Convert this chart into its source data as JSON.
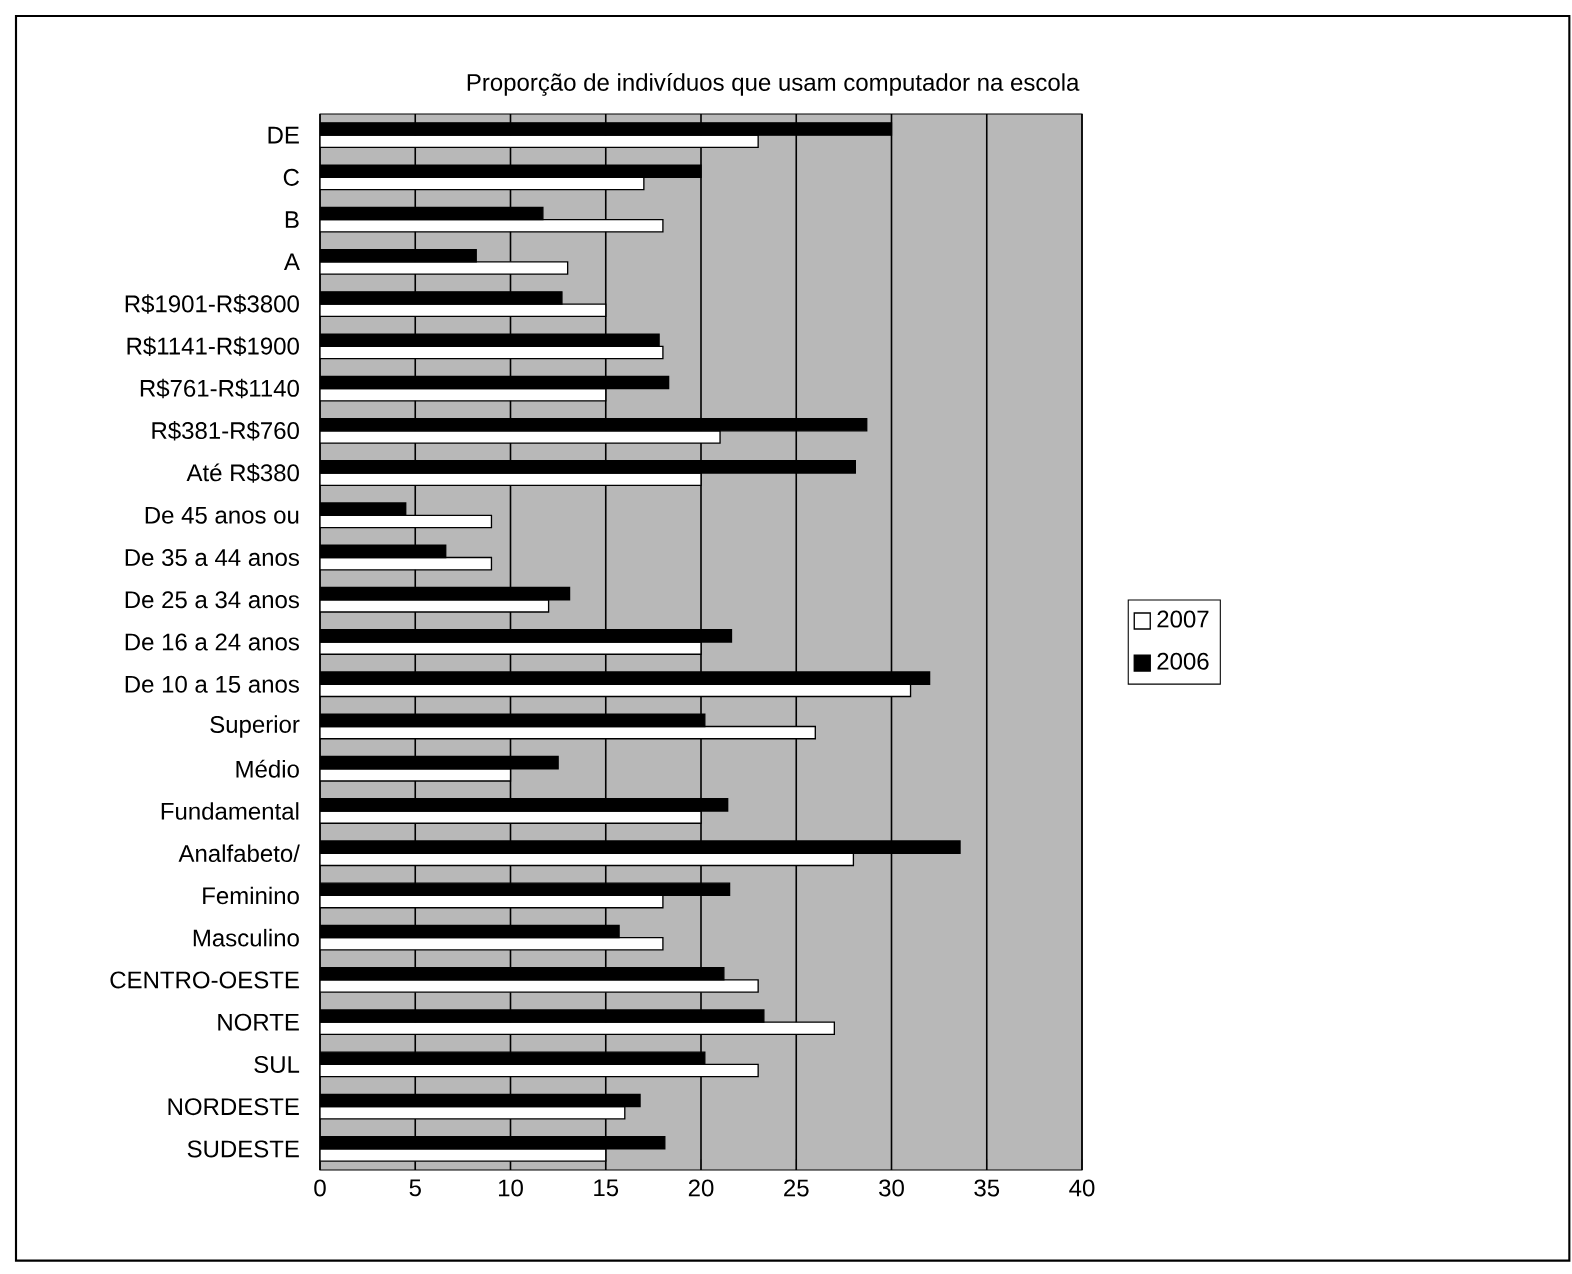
{
  "chart_data": {
    "type": "bar",
    "orientation": "horizontal",
    "title": "Proporção de indivíduos que usam computador na escola",
    "categories": [
      "DE",
      "C",
      "B",
      "A",
      "R$1901-R$3800",
      "R$1141-R$1900",
      "R$761-R$1140",
      "R$381-R$760",
      "Até R$380",
      "De 45 anos ou",
      "De 35 a 44 anos",
      "De 25 a 34 anos",
      "De 16 a 24 anos",
      "De 10 a 15 anos",
      "Superior",
      "Médio",
      "Fundamental",
      "Analfabeto/",
      "Feminino",
      "Masculino",
      "CENTRO-OESTE",
      "NORTE",
      "SUL",
      "NORDESTE",
      "SUDESTE"
    ],
    "series": [
      {
        "name": "2007",
        "color": "#ffffff",
        "values": [
          23,
          17,
          18,
          13,
          15,
          18,
          15,
          21,
          20,
          9,
          9,
          12,
          20,
          31,
          26,
          10,
          20,
          28,
          18,
          18,
          23,
          27,
          23,
          16,
          15
        ]
      },
      {
        "name": "2006",
        "color": "#000000",
        "values": [
          30,
          20,
          11.7,
          8.2,
          12.7,
          17.8,
          18.3,
          28.7,
          28.1,
          4.5,
          6.6,
          13.1,
          21.6,
          32,
          20.2,
          12.5,
          21.4,
          33.6,
          21.5,
          15.7,
          21.2,
          23.3,
          20.2,
          16.8,
          18.1
        ]
      }
    ],
    "xlim": [
      0,
      40
    ],
    "xticks": [
      0,
      5,
      10,
      15,
      20,
      25,
      30,
      35,
      40
    ],
    "grid": "x",
    "legend": "right"
  }
}
